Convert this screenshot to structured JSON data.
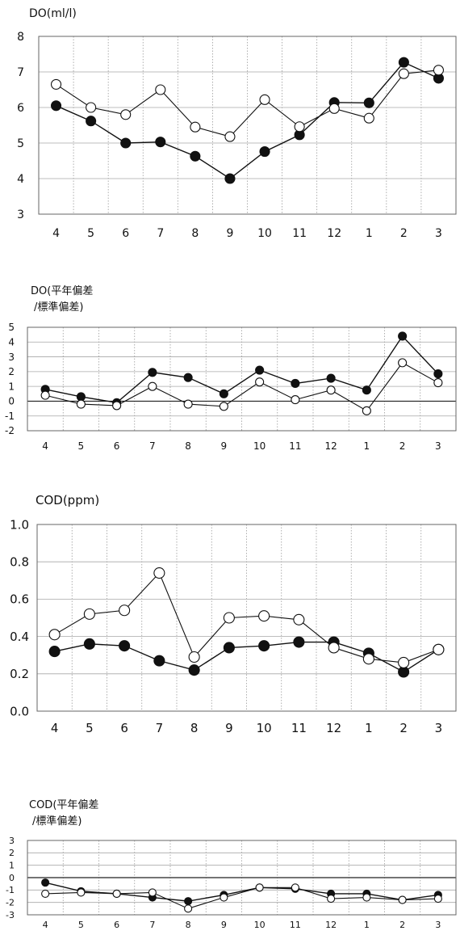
{
  "chart_data": [
    {
      "type": "line",
      "title": "DO(ml/l)",
      "categories": [
        "4",
        "5",
        "6",
        "7",
        "8",
        "9",
        "10",
        "11",
        "12",
        "1",
        "2",
        "3"
      ],
      "ylim": [
        3,
        8
      ],
      "yticks": [
        3,
        4,
        5,
        6,
        7,
        8
      ],
      "grid": true,
      "series": [
        {
          "marker": "filled",
          "values": [
            6.05,
            5.62,
            5.0,
            5.03,
            4.63,
            4.0,
            4.76,
            5.23,
            6.14,
            6.13,
            7.27,
            6.82
          ]
        },
        {
          "marker": "open",
          "values": [
            6.65,
            6.0,
            5.8,
            6.5,
            5.45,
            5.18,
            6.22,
            5.46,
            5.97,
            5.7,
            6.95,
            7.05
          ]
        }
      ]
    },
    {
      "type": "line",
      "title": "DO(平年偏差",
      "title_line2": "/標準偏差)",
      "categories": [
        "4",
        "5",
        "6",
        "7",
        "8",
        "9",
        "10",
        "11",
        "12",
        "1",
        "2",
        "3"
      ],
      "ylim": [
        -2,
        5
      ],
      "yticks": [
        -2,
        -1,
        0,
        1,
        2,
        3,
        4,
        5
      ],
      "grid": true,
      "series": [
        {
          "marker": "filled",
          "values": [
            0.8,
            0.3,
            -0.1,
            1.95,
            1.6,
            0.5,
            2.1,
            1.2,
            1.55,
            0.75,
            4.4,
            1.85
          ]
        },
        {
          "marker": "open",
          "values": [
            0.4,
            -0.2,
            -0.3,
            1.0,
            -0.2,
            -0.35,
            1.3,
            0.1,
            0.75,
            -0.65,
            2.6,
            1.25
          ]
        }
      ]
    },
    {
      "type": "line",
      "title": "COD(ppm)",
      "categories": [
        "4",
        "5",
        "6",
        "7",
        "8",
        "9",
        "10",
        "11",
        "12",
        "1",
        "2",
        "3"
      ],
      "ylim": [
        0.0,
        1.0
      ],
      "yticks": [
        "0.0",
        "0.2",
        "0.4",
        "0.6",
        "0.8",
        "1.0"
      ],
      "grid": true,
      "series": [
        {
          "marker": "filled",
          "values": [
            0.32,
            0.36,
            0.35,
            0.27,
            0.22,
            0.34,
            0.35,
            0.37,
            0.37,
            0.31,
            0.21,
            0.33
          ]
        },
        {
          "marker": "open",
          "values": [
            0.41,
            0.52,
            0.54,
            0.74,
            0.29,
            0.5,
            0.51,
            0.49,
            0.34,
            0.28,
            0.26,
            0.33
          ]
        }
      ]
    },
    {
      "type": "line",
      "title": "COD(平年偏差",
      "title_line2": "/標準偏差)",
      "categories": [
        "4",
        "5",
        "6",
        "7",
        "8",
        "9",
        "10",
        "11",
        "12",
        "1",
        "2",
        "3"
      ],
      "ylim": [
        -3,
        3
      ],
      "yticks": [
        -3,
        -2,
        -1,
        0,
        1,
        2,
        3
      ],
      "grid": true,
      "series": [
        {
          "marker": "filled",
          "values": [
            -0.4,
            -1.1,
            -1.3,
            -1.6,
            -1.9,
            -1.4,
            -0.8,
            -0.9,
            -1.3,
            -1.3,
            -1.8,
            -1.4
          ]
        },
        {
          "marker": "open",
          "values": [
            -1.3,
            -1.2,
            -1.3,
            -1.2,
            -2.5,
            -1.6,
            -0.8,
            -0.8,
            -1.7,
            -1.6,
            -1.8,
            -1.7
          ]
        }
      ]
    }
  ]
}
